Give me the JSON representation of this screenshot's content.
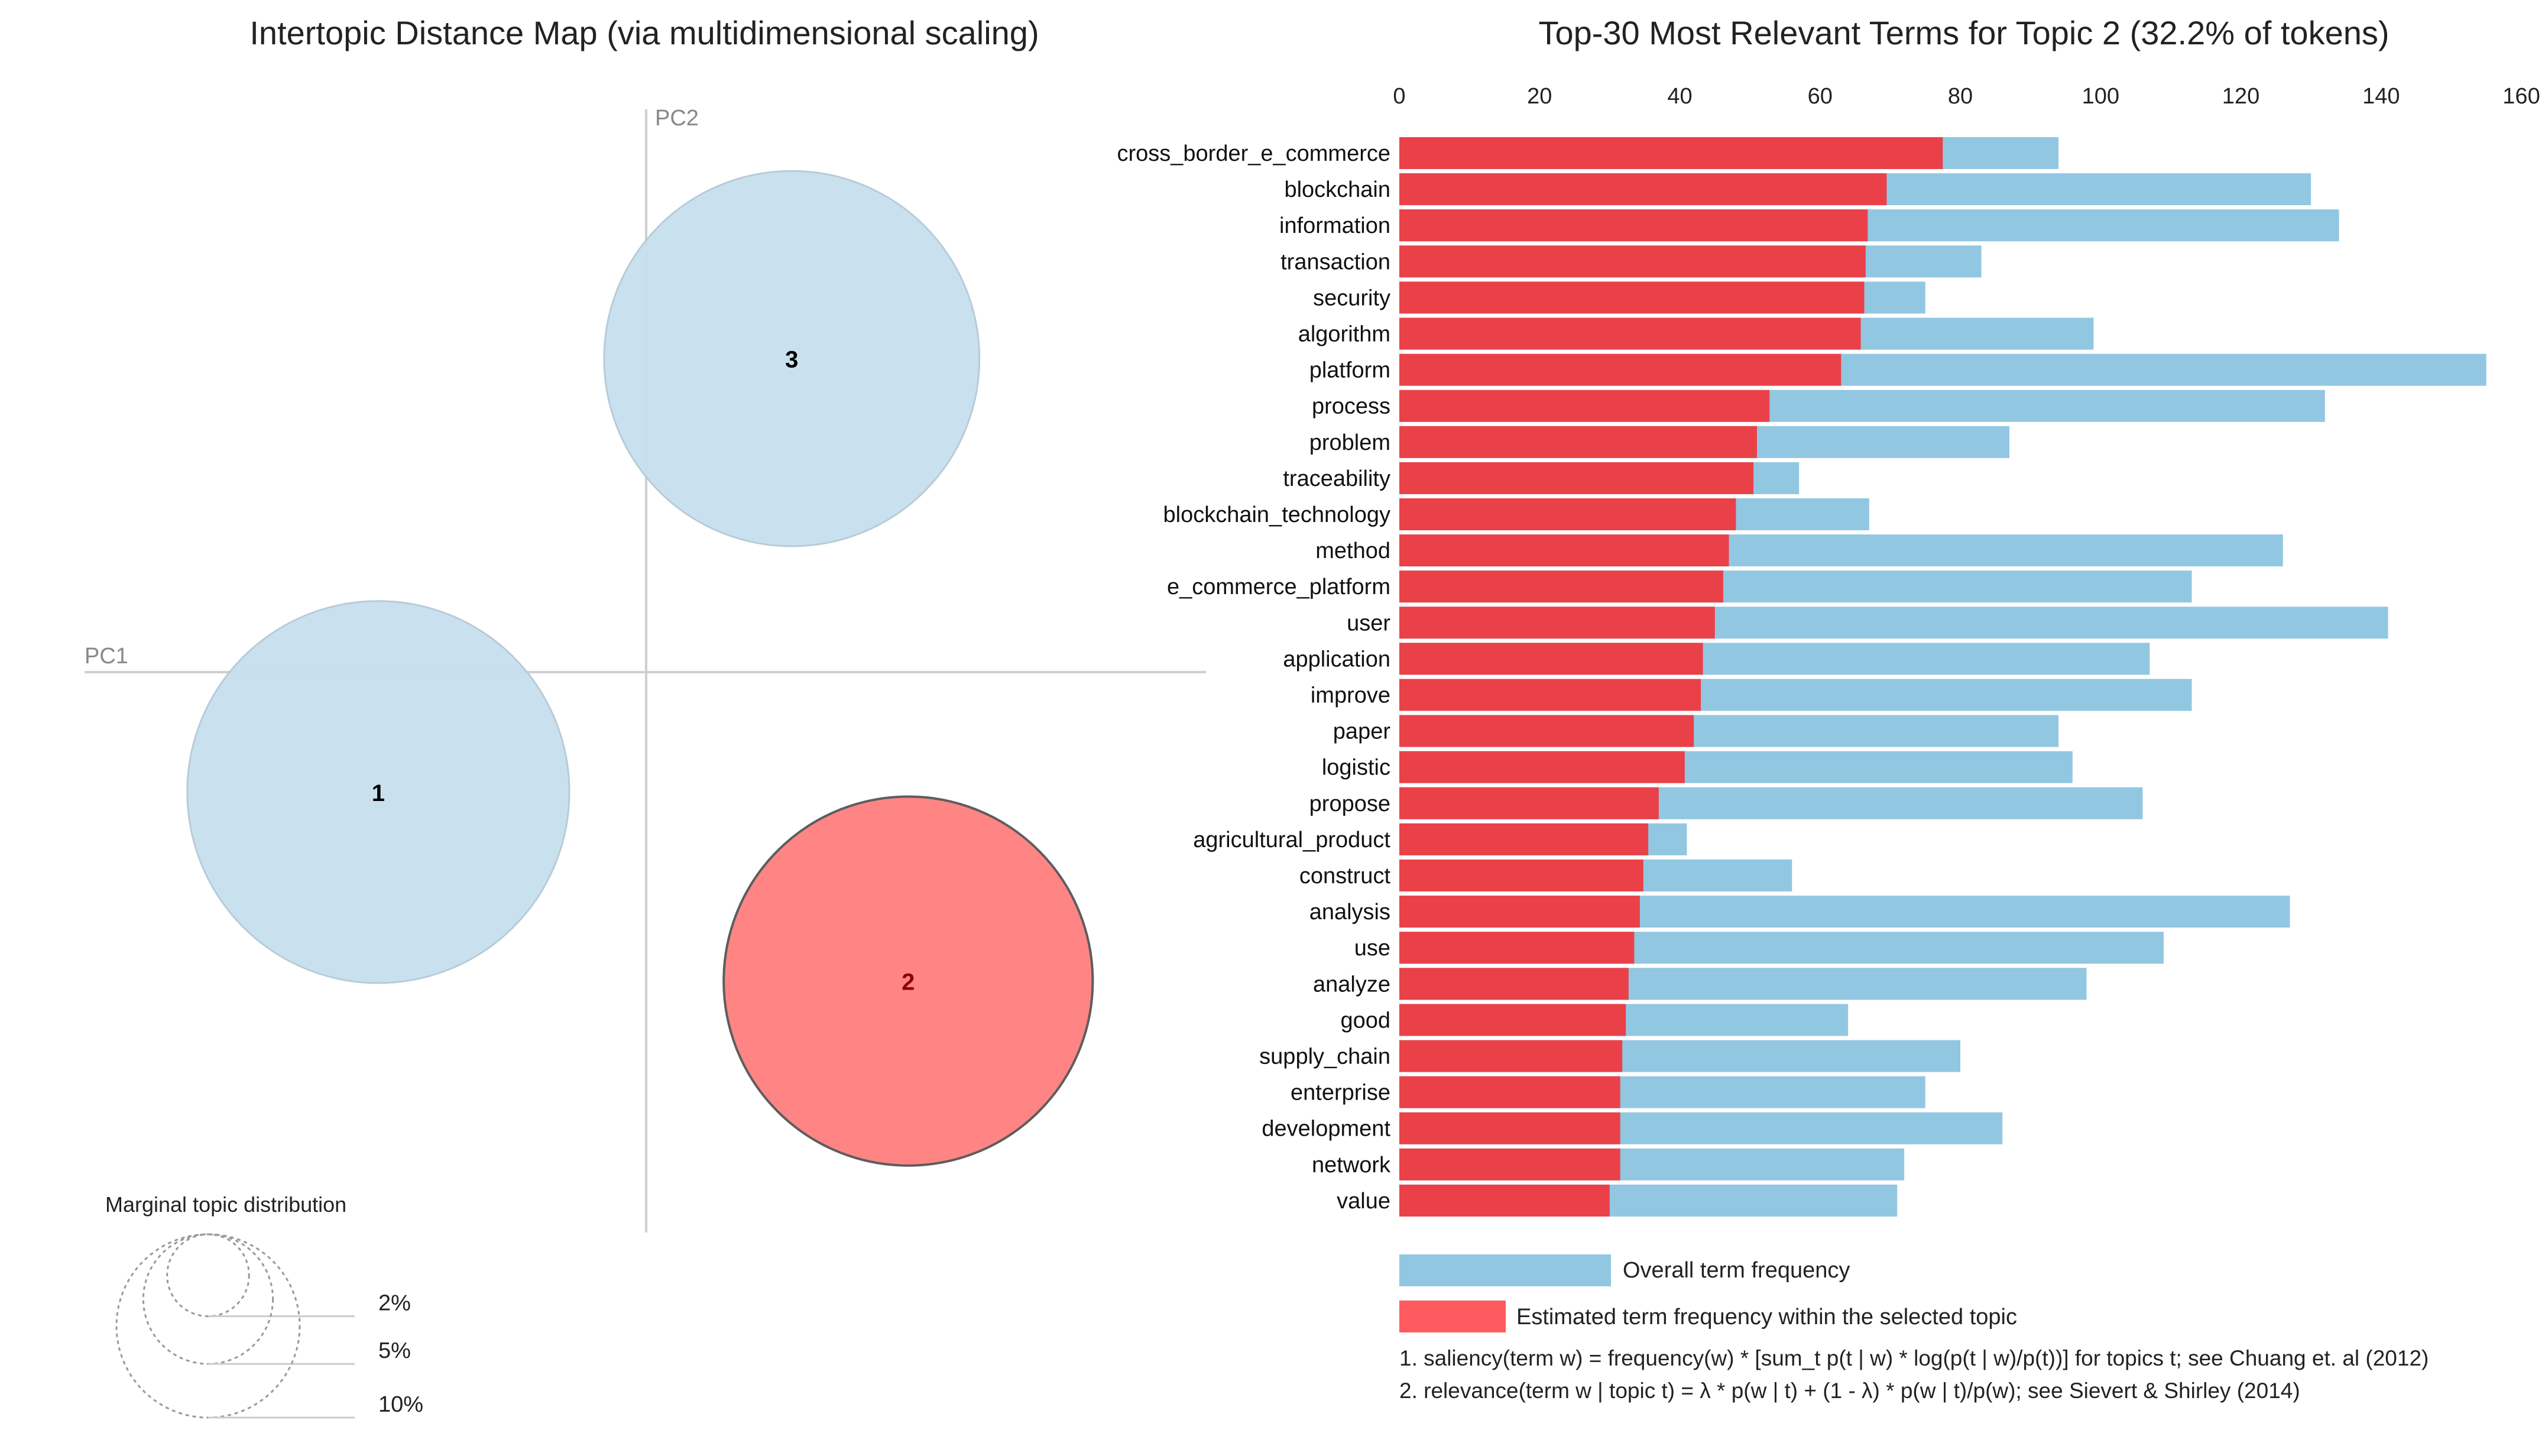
{
  "chart_data": [
    {
      "type": "scatter",
      "name": "intertopic-distance-map",
      "title": "Intertopic Distance Map (via multidimensional scaling)",
      "xlabel": "PC1",
      "ylabel": "PC2",
      "topics": [
        {
          "id": "1",
          "pc1": -0.46,
          "pc2": -0.26,
          "share_pct": 34.5,
          "selected": false
        },
        {
          "id": "2",
          "pc1": 0.45,
          "pc2": -0.67,
          "share_pct": 32.2,
          "selected": true
        },
        {
          "id": "3",
          "pc1": 0.25,
          "pc2": 0.68,
          "share_pct": 33.3,
          "selected": false
        }
      ],
      "legend": {
        "title": "Marginal topic distribution",
        "levels": [
          {
            "label": "2%",
            "value": 2
          },
          {
            "label": "5%",
            "value": 5
          },
          {
            "label": "10%",
            "value": 10
          }
        ]
      },
      "colors": {
        "unselected": "#c7e0ef",
        "selected": "#ff7f7f"
      }
    },
    {
      "type": "bar",
      "name": "top-terms-bar-chart",
      "title": "Top-30 Most Relevant Terms for Topic 2 (32.2% of tokens)",
      "xlim": [
        0,
        160
      ],
      "xticks": [
        0,
        20,
        40,
        60,
        80,
        100,
        120,
        140,
        160
      ],
      "categories": [
        "cross_border_e_commerce",
        "blockchain",
        "information",
        "transaction",
        "security",
        "algorithm",
        "platform",
        "process",
        "problem",
        "traceability",
        "blockchain_technology",
        "method",
        "e_commerce_platform",
        "user",
        "application",
        "improve",
        "paper",
        "logistic",
        "propose",
        "agricultural_product",
        "construct",
        "analysis",
        "use",
        "analyze",
        "good",
        "supply_chain",
        "enterprise",
        "development",
        "network",
        "value"
      ],
      "series": [
        {
          "name": "Overall term frequency",
          "color": "#92c7e2",
          "values": [
            94,
            130,
            134,
            83,
            75,
            99,
            155,
            132,
            87,
            57,
            67,
            126,
            113,
            141,
            107,
            113,
            94,
            96,
            106,
            41,
            56,
            127,
            109,
            98,
            64,
            80,
            75,
            86,
            72,
            71
          ]
        },
        {
          "name": "Estimated term frequency within the selected topic",
          "color": "#ea4149",
          "values": [
            77.5,
            69.5,
            66.8,
            66.5,
            66.3,
            65.8,
            63,
            52.8,
            51,
            50.5,
            48,
            47,
            46.2,
            45,
            43.3,
            43,
            42,
            40.7,
            37,
            35.5,
            34.8,
            34.3,
            33.5,
            32.7,
            32.3,
            31.8,
            31.5,
            31.5,
            31.5,
            30
          ]
        }
      ],
      "legend_labels": {
        "overall": "Overall term frequency",
        "topic": "Estimated term frequency within the selected topic"
      }
    }
  ],
  "notes": {
    "saliency": "1. saliency(term w) = frequency(w) * [sum_t p(t | w) * log(p(t | w)/p(t))] for topics t; see Chuang et. al (2012)",
    "relevance": "2. relevance(term w | topic t) = λ * p(w | t) + (1 - λ) * p(w | t)/p(w); see Sievert & Shirley (2014)"
  }
}
